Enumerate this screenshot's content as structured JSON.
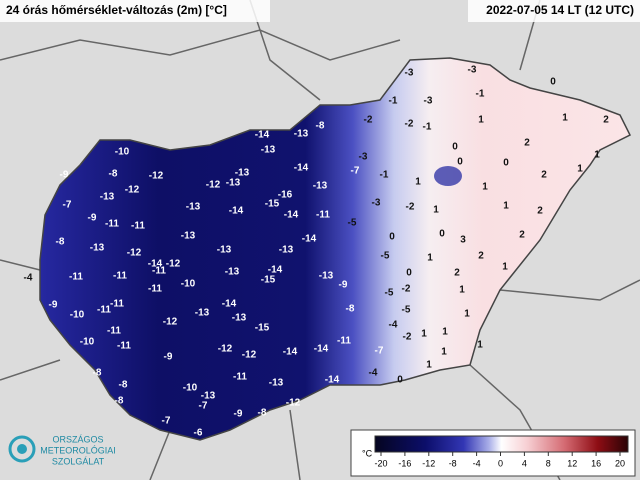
{
  "title": "24 órás hőmérséklet-változás (2m) [°C]",
  "timestamp": "2022-07-05 14 LT (12 UTC)",
  "logo": [
    "ORSZÁGOS",
    "METEOROLÓGIAI",
    "SZOLGÁLAT"
  ],
  "colorbar": {
    "unit": "°C",
    "ticks": [
      -20,
      -16,
      -12,
      -8,
      -4,
      0,
      4,
      8,
      12,
      16,
      20
    ]
  },
  "stations": [
    -3,
    -3,
    0,
    -1,
    -3,
    -1,
    -8,
    -2,
    -2,
    -1,
    1,
    1,
    2,
    -14,
    -13,
    -10,
    -13,
    -3,
    0,
    2,
    1,
    -9,
    -8,
    -12,
    -13,
    -14,
    -7,
    -1,
    1,
    0,
    0,
    2,
    -12,
    -12,
    -13,
    -16,
    -13,
    1,
    1,
    -7,
    -13,
    -13,
    -15,
    -3,
    -2,
    1,
    1,
    2,
    -9,
    -11,
    -14,
    -14,
    -11,
    -5,
    -8,
    -11,
    -13,
    -14,
    0,
    0,
    3,
    2,
    -13,
    -12,
    -14,
    -12,
    -13,
    -13,
    -5,
    1,
    2,
    -4,
    -11,
    -11,
    -11,
    -10,
    -13,
    -14,
    -15,
    -13,
    0,
    2,
    1,
    -9,
    -10,
    -11,
    -11,
    -11,
    -14,
    -9,
    -5,
    -2,
    1,
    -11,
    -12,
    -13,
    -13,
    -8,
    -5,
    -4,
    1,
    -10,
    -15,
    -11,
    1,
    -11,
    -12,
    -12,
    -14,
    -14,
    -7,
    -2,
    1,
    1,
    -9,
    -8,
    -11,
    -13,
    -14,
    -4,
    0,
    1,
    1,
    -10,
    -8,
    -13,
    -8,
    -7,
    -9,
    -8,
    -12,
    -7,
    -6
  ]
}
